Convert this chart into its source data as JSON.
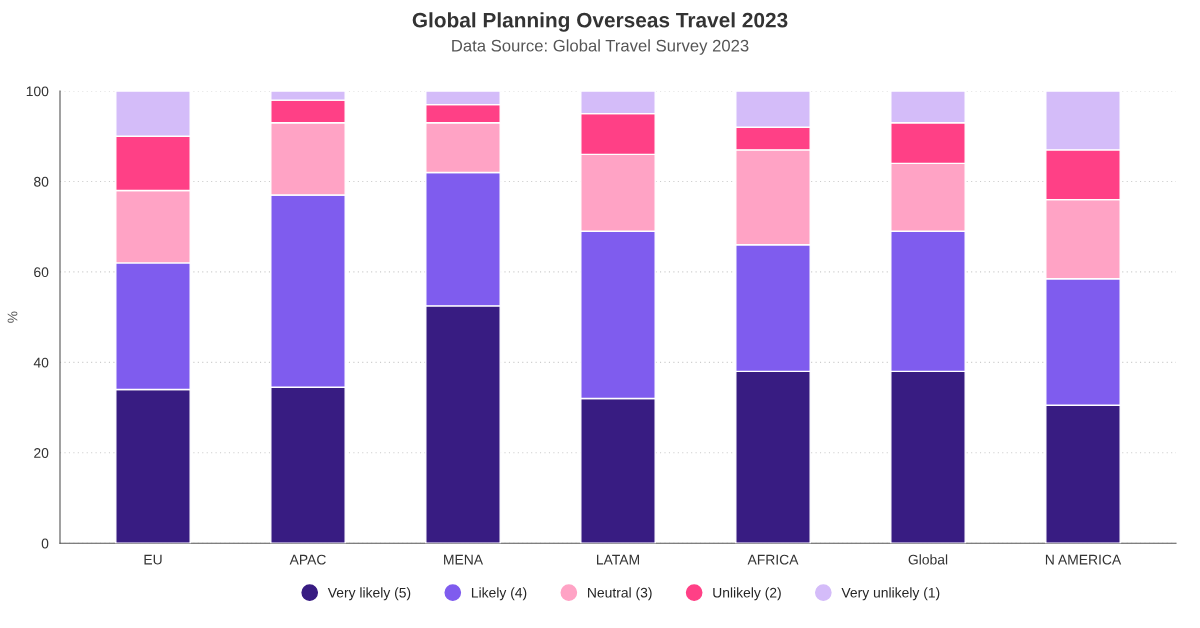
{
  "chart_data": {
    "type": "bar",
    "title": "Global Planning Overseas Travel 2023",
    "subtitle": "Data Source: Global Travel Survey 2023",
    "ylabel": "%",
    "categories": [
      "EU",
      "APAC",
      "MENA",
      "LATAM",
      "AFRICA",
      "Global",
      "N AMERICA"
    ],
    "stacked": true,
    "series": [
      {
        "name": "Very likely (5)",
        "color": "#381c82",
        "values": [
          34,
          34.5,
          52.5,
          32,
          38,
          38,
          30.5
        ]
      },
      {
        "name": "Likely (4)",
        "color": "#7f5cee",
        "values": [
          28,
          42.5,
          29.5,
          37,
          28,
          31,
          28
        ]
      },
      {
        "name": "Neutral (3)",
        "color": "#ffa3c5",
        "values": [
          16,
          16,
          11,
          17,
          21,
          15,
          17.5
        ]
      },
      {
        "name": "Unlikely (2)",
        "color": "#ff4086",
        "values": [
          12,
          5,
          4,
          9,
          5,
          9,
          11
        ]
      },
      {
        "name": "Very unlikely (1)",
        "color": "#d4bcf9",
        "values": [
          10,
          2,
          3,
          5,
          8,
          7,
          13
        ]
      }
    ],
    "ylim": [
      0,
      100
    ],
    "yticks": [
      0,
      20,
      40,
      60,
      80,
      100
    ],
    "grid": "y",
    "legend": "bottom"
  }
}
